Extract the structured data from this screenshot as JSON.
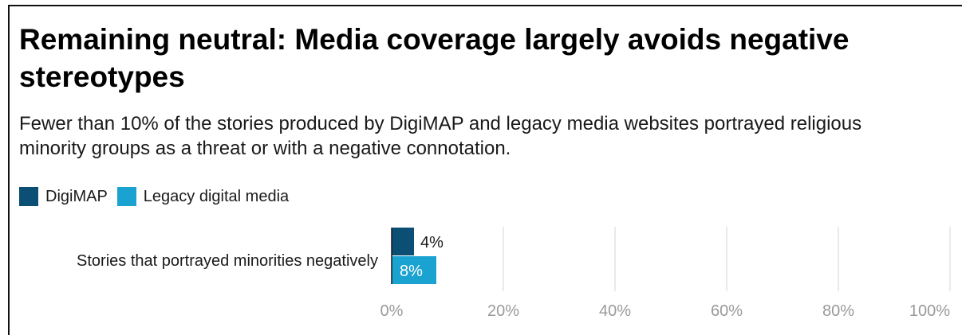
{
  "title": "Remaining neutral: Media coverage largely avoids negative stereotypes",
  "subtitle": "Fewer than 10% of the stories produced by DigiMAP and legacy media websites portrayed religious minority groups as a threat or with a negative connotation.",
  "colors": {
    "digimap": "#0b4f74",
    "legacy": "#1aa3d0",
    "grid": "#e3e3e3",
    "tick": "#9a9a9a"
  },
  "chart_data": {
    "type": "bar",
    "orientation": "horizontal",
    "title": "Remaining neutral: Media coverage largely avoids negative stereotypes",
    "subtitle": "Fewer than 10% of the stories produced by DigiMAP and legacy media websites portrayed religious minority groups as a threat or with a negative connotation.",
    "categories": [
      "Stories that portrayed minorities negatively"
    ],
    "series": [
      {
        "name": "DigiMAP",
        "values": [
          4
        ],
        "labels": [
          "4%"
        ],
        "color": "#0b4f74"
      },
      {
        "name": "Legacy digital media",
        "values": [
          8
        ],
        "labels": [
          "8%"
        ],
        "color": "#1aa3d0"
      }
    ],
    "xlim": [
      0,
      100
    ],
    "xticks": [
      0,
      20,
      40,
      60,
      80,
      100
    ],
    "xtick_labels": [
      "0%",
      "20%",
      "40%",
      "60%",
      "80%",
      "100%"
    ],
    "grid": true,
    "legend_position": "top-left"
  }
}
